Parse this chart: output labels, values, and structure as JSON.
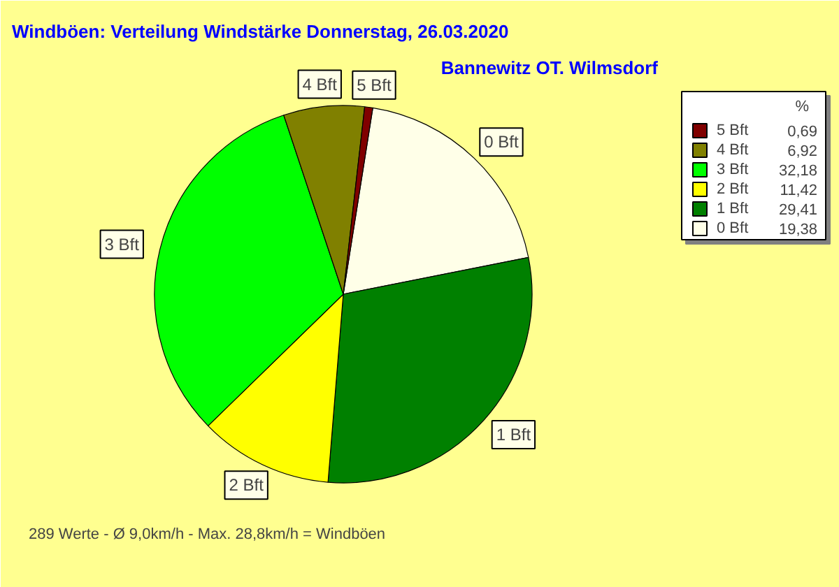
{
  "chart_data": {
    "type": "pie",
    "title": "Windböen: Verteilung Windstärke  Donnerstag, 26.03.2020",
    "subtitle": "Bannewitz OT. Wilmsdorf",
    "categories": [
      "0 Bft",
      "1 Bft",
      "2 Bft",
      "3 Bft",
      "4 Bft",
      "5 Bft"
    ],
    "values": [
      19.38,
      29.41,
      11.42,
      32.18,
      6.92,
      0.69
    ],
    "colors": [
      "#ffffe8",
      "#008000",
      "#ffff00",
      "#00ff00",
      "#808000",
      "#800000"
    ],
    "legend": "top right",
    "legend_title": "%",
    "value_labels": [
      "19,38",
      "29,41",
      "11,42",
      "32,18",
      "6,92",
      "0,69"
    ],
    "annotations": [
      "289 Werte   -   Ø 9,0km/h  -  Max. 28,8km/h = Windböen"
    ]
  }
}
